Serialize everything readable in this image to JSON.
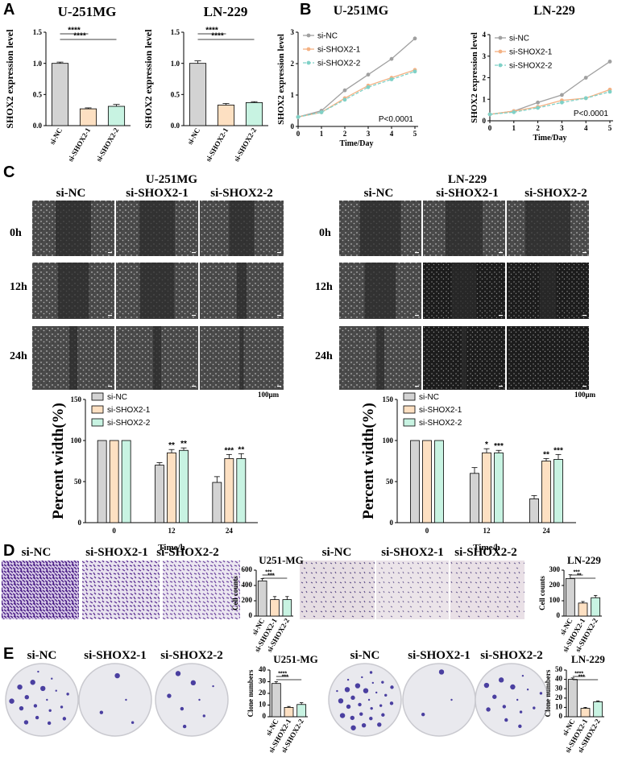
{
  "panels": {
    "A": "A",
    "B": "B",
    "C": "C",
    "D": "D",
    "E": "E"
  },
  "colors": {
    "siNC": "#d3d3d3",
    "siSHOX2_1": "#fde0c2",
    "siSHOX2_2": "#c8f3e2",
    "line_nc": "#a0a0a0",
    "line_1": "#f4b183",
    "line_2": "#7fd1c7",
    "stain": "#5a2d91",
    "colony": "#4a3fa0"
  },
  "groups": [
    "si-NC",
    "si-SHOX2-1",
    "si-SHOX2-2"
  ],
  "scale_bar": "100μm",
  "section_c": {
    "u251": {
      "title_line1": "U-251MG",
      "title_line2": "si-SHOX2-1",
      "nc": "si-NC",
      "s2": "si-SHOX2-2"
    },
    "ln229": {
      "title_line1": "LN-229",
      "title_line2": "si-SHOX2-1",
      "nc": "si-NC",
      "s2": "si-SHOX2-2"
    },
    "times": [
      "0h",
      "12h",
      "24h"
    ]
  },
  "section_d": {
    "u251_title": "U251-MG",
    "ln229_title": "LN-229"
  },
  "section_e": {
    "u251_title": "U251-MG",
    "ln229_title": "LN-229"
  },
  "chart_data": [
    {
      "id": "A1",
      "type": "bar",
      "title": "U-251MG",
      "ylabel": "SHOX2 expression level",
      "categories": [
        "si-NC",
        "si-SHOX2-1",
        "si-SHOX2-2"
      ],
      "values": [
        1.0,
        0.27,
        0.31
      ],
      "errors": [
        0.02,
        0.015,
        0.03
      ],
      "ylim": [
        0,
        1.5
      ],
      "yticks": [
        "0.0",
        "0.5",
        "1.0",
        "1.5"
      ],
      "significance": [
        {
          "from": 0,
          "to": 1,
          "label": "****"
        },
        {
          "from": 0,
          "to": 2,
          "label": "****"
        }
      ]
    },
    {
      "id": "A2",
      "type": "bar",
      "title": "LN-229",
      "ylabel": "SHOX2 expression level",
      "categories": [
        "si-NC",
        "si-SHOX2-1",
        "si-SHOX2-2"
      ],
      "values": [
        1.0,
        0.33,
        0.37
      ],
      "errors": [
        0.04,
        0.025,
        0.015
      ],
      "ylim": [
        0,
        1.5
      ],
      "yticks": [
        "0.0",
        "0.5",
        "1.0",
        "1.5"
      ],
      "significance": [
        {
          "from": 0,
          "to": 1,
          "label": "****"
        },
        {
          "from": 0,
          "to": 2,
          "label": "****"
        }
      ]
    },
    {
      "id": "B1",
      "type": "line",
      "title": "U-251MG",
      "xlabel": "Time/Day",
      "ylabel": "SHOX2 expression level",
      "x": [
        0,
        1,
        2,
        3,
        4,
        5
      ],
      "ylim": [
        0,
        3
      ],
      "yticks": [
        "0",
        "1",
        "2",
        "3"
      ],
      "xticks": [
        "0",
        "1",
        "2",
        "3",
        "4",
        "5"
      ],
      "annotation": "P<0.0001",
      "series": [
        {
          "name": "si-NC",
          "values": [
            0.3,
            0.5,
            1.15,
            1.65,
            2.15,
            2.8
          ]
        },
        {
          "name": "si-SHOX2-1",
          "values": [
            0.3,
            0.45,
            0.9,
            1.3,
            1.55,
            1.8
          ]
        },
        {
          "name": "si-SHOX2-2",
          "values": [
            0.3,
            0.45,
            0.85,
            1.25,
            1.5,
            1.75
          ]
        }
      ]
    },
    {
      "id": "B2",
      "type": "line",
      "title": "LN-229",
      "xlabel": "Time/Day",
      "ylabel": "SHOX2 expression level",
      "x": [
        0,
        1,
        2,
        3,
        4,
        5
      ],
      "ylim": [
        0,
        4
      ],
      "yticks": [
        "0",
        "1",
        "2",
        "3",
        "4"
      ],
      "xticks": [
        "0",
        "1",
        "2",
        "3",
        "4",
        "5"
      ],
      "annotation": "P<0.0001",
      "series": [
        {
          "name": "si-NC",
          "values": [
            0.3,
            0.45,
            0.85,
            1.2,
            2.0,
            2.75
          ]
        },
        {
          "name": "si-SHOX2-1",
          "values": [
            0.3,
            0.45,
            0.65,
            0.95,
            1.05,
            1.45
          ]
        },
        {
          "name": "si-SHOX2-2",
          "values": [
            0.3,
            0.4,
            0.6,
            0.85,
            1.05,
            1.35
          ]
        }
      ]
    },
    {
      "id": "C1",
      "type": "bar",
      "xlabel": "Time/h",
      "ylabel": "Percent width(%)",
      "categories": [
        "0",
        "12",
        "24"
      ],
      "legend": [
        "si-NC",
        "si-SHOX2-1",
        "si-SHOX2-2"
      ],
      "ylim": [
        0,
        150
      ],
      "yticks": [
        "0",
        "50",
        "100",
        "150"
      ],
      "series": [
        {
          "name": "si-NC",
          "values": [
            100,
            70,
            49
          ],
          "errors": [
            0,
            3,
            7
          ]
        },
        {
          "name": "si-SHOX2-1",
          "values": [
            100,
            85,
            78
          ],
          "errors": [
            0,
            4,
            5
          ]
        },
        {
          "name": "si-SHOX2-2",
          "values": [
            100,
            88,
            78
          ],
          "errors": [
            0,
            3,
            6
          ]
        }
      ],
      "stars": [
        [
          "",
          "",
          ""
        ],
        [
          "",
          "**",
          "***"
        ],
        [
          "",
          "**",
          "**"
        ]
      ]
    },
    {
      "id": "C2",
      "type": "bar",
      "xlabel": "Time/h",
      "ylabel": "Percent width(%)",
      "categories": [
        "0",
        "12",
        "24"
      ],
      "legend": [
        "si-NC",
        "si-SHOX2-1",
        "si-SHOX2-2"
      ],
      "ylim": [
        0,
        150
      ],
      "yticks": [
        "0",
        "50",
        "100",
        "150"
      ],
      "series": [
        {
          "name": "si-NC",
          "values": [
            100,
            60,
            29
          ],
          "errors": [
            0,
            7,
            4
          ]
        },
        {
          "name": "si-SHOX2-1",
          "values": [
            100,
            85,
            75
          ],
          "errors": [
            0,
            5,
            3
          ]
        },
        {
          "name": "si-SHOX2-2",
          "values": [
            100,
            85,
            77
          ],
          "errors": [
            0,
            3,
            6
          ]
        }
      ],
      "stars": [
        [
          "",
          "",
          ""
        ],
        [
          "",
          "*",
          "**"
        ],
        [
          "",
          "***",
          "***"
        ]
      ]
    },
    {
      "id": "D1",
      "type": "bar",
      "title": "U251-MG",
      "ylabel": "Cell counts",
      "categories": [
        "si-NC",
        "si-SHOX2-1",
        "si-SHOX2-2"
      ],
      "values": [
        460,
        215,
        215
      ],
      "errors": [
        30,
        40,
        40
      ],
      "ylim": [
        0,
        600
      ],
      "yticks": [
        "0",
        "200",
        "400",
        "600"
      ],
      "significance": [
        {
          "from": 0,
          "to": 1,
          "label": "***"
        },
        {
          "from": 0,
          "to": 2,
          "label": "***"
        }
      ]
    },
    {
      "id": "D2",
      "type": "bar",
      "title": "LN-229",
      "ylabel": "Cell counts",
      "categories": [
        "si-NC",
        "si-SHOX2-1",
        "si-SHOX2-2"
      ],
      "values": [
        245,
        85,
        120
      ],
      "errors": [
        25,
        10,
        15
      ],
      "ylim": [
        0,
        300
      ],
      "yticks": [
        "0",
        "100",
        "200",
        "300"
      ],
      "significance": [
        {
          "from": 0,
          "to": 1,
          "label": "***"
        },
        {
          "from": 0,
          "to": 2,
          "label": "**"
        }
      ]
    },
    {
      "id": "E1",
      "type": "bar",
      "title": "U251-MG",
      "ylabel": "Clone numbers",
      "categories": [
        "si-NC",
        "si-SHOX2-1",
        "si-SHOX2-2"
      ],
      "values": [
        28.5,
        8,
        10.5
      ],
      "errors": [
        1.5,
        0.8,
        1.5
      ],
      "ylim": [
        0,
        40
      ],
      "yticks": [
        "0",
        "10",
        "20",
        "30",
        "40"
      ],
      "significance": [
        {
          "from": 0,
          "to": 1,
          "label": "****"
        },
        {
          "from": 0,
          "to": 2,
          "label": "***"
        }
      ]
    },
    {
      "id": "E2",
      "type": "bar",
      "title": "LN-229",
      "ylabel": "Clone numbers",
      "categories": [
        "si-NC",
        "si-SHOX2-1",
        "si-SHOX2-2"
      ],
      "values": [
        40,
        9,
        16
      ],
      "errors": [
        1.5,
        1,
        1
      ],
      "ylim": [
        0,
        50
      ],
      "yticks": [
        "0",
        "10",
        "20",
        "30",
        "40",
        "50"
      ],
      "significance": [
        {
          "from": 0,
          "to": 1,
          "label": "****"
        },
        {
          "from": 0,
          "to": 2,
          "label": "***"
        }
      ]
    }
  ]
}
